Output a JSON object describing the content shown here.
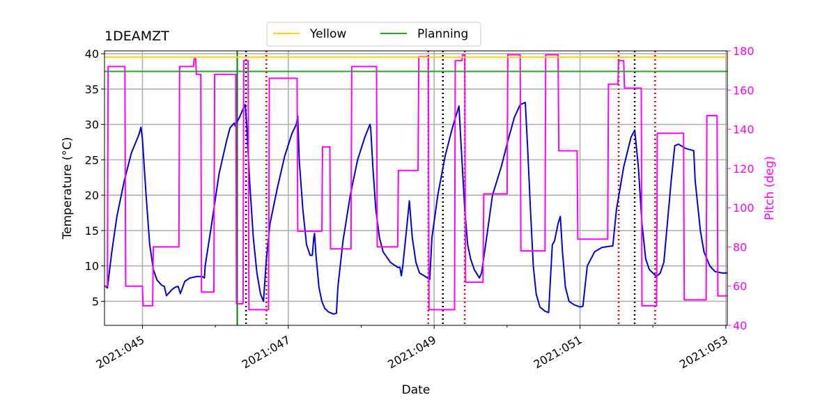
{
  "chart_data": {
    "type": "line",
    "title": "1DEAMZT",
    "xlabel": "Date",
    "ylabel": "Temperature ($^\\circ$C)",
    "y2label": "Pitch (deg)",
    "xlim": [
      44.48,
      53.02
    ],
    "ylim": [
      1.6,
      40.4
    ],
    "y2lim": [
      40,
      180
    ],
    "x_ticks": [
      45,
      47,
      49,
      51,
      53
    ],
    "x_tick_labels": [
      "2021:045",
      "2021:047",
      "2021:049",
      "2021:051",
      "2021:053"
    ],
    "y_ticks": [
      5,
      10,
      15,
      20,
      25,
      30,
      35,
      40
    ],
    "y2_ticks": [
      40,
      60,
      80,
      100,
      120,
      140,
      160,
      180
    ],
    "grid": true,
    "legend_position": "top-center",
    "colors": {
      "temperature": "#0000dd",
      "pitch": "#ff00ff",
      "yellow_limit": "#ffd700",
      "planning_limit": "#2ca02c",
      "now_line": "#008000",
      "black_marker": "#000000",
      "red_marker": "#dd0000"
    },
    "limit_lines": [
      {
        "name": "Yellow",
        "value": 39.5
      },
      {
        "name": "Planning",
        "value": 37.5
      }
    ],
    "now_x": 46.3,
    "black_markers": [
      46.42,
      49.12,
      51.75
    ],
    "red_markers": [
      46.7,
      48.92,
      49.42,
      51.53,
      52.03
    ],
    "series": [
      {
        "name": "",
        "axis": "temperature",
        "points": [
          [
            44.48,
            7.2
          ],
          [
            44.52,
            6.9
          ],
          [
            44.58,
            12
          ],
          [
            44.65,
            17
          ],
          [
            44.75,
            22
          ],
          [
            44.85,
            26
          ],
          [
            44.95,
            28.5
          ],
          [
            44.98,
            29.6
          ],
          [
            45.0,
            28
          ],
          [
            45.05,
            20
          ],
          [
            45.1,
            13
          ],
          [
            45.15,
            9.5
          ],
          [
            45.2,
            8
          ],
          [
            45.26,
            7.3
          ],
          [
            45.3,
            7.1
          ],
          [
            45.33,
            5.8
          ],
          [
            45.4,
            6.6
          ],
          [
            45.45,
            7
          ],
          [
            45.49,
            7.1
          ],
          [
            45.52,
            6.1
          ],
          [
            45.58,
            7.8
          ],
          [
            45.65,
            8.3
          ],
          [
            45.75,
            8.5
          ],
          [
            45.82,
            8.5
          ],
          [
            45.85,
            8.3
          ],
          [
            45.86,
            10
          ],
          [
            45.95,
            16
          ],
          [
            46.05,
            23
          ],
          [
            46.15,
            27.5
          ],
          [
            46.2,
            29.5
          ],
          [
            46.26,
            30.2
          ],
          [
            46.27,
            29.8
          ],
          [
            46.33,
            31
          ],
          [
            46.38,
            32.2
          ],
          [
            46.41,
            32.8
          ],
          [
            46.43,
            30
          ],
          [
            46.47,
            22
          ],
          [
            46.52,
            14
          ],
          [
            46.57,
            9
          ],
          [
            46.62,
            6
          ],
          [
            46.66,
            5
          ],
          [
            46.7,
            11
          ],
          [
            46.75,
            16
          ],
          [
            46.85,
            21
          ],
          [
            46.95,
            25.5
          ],
          [
            47.05,
            28.7
          ],
          [
            47.11,
            30
          ],
          [
            47.13,
            31.2
          ],
          [
            47.15,
            25
          ],
          [
            47.2,
            18
          ],
          [
            47.25,
            13
          ],
          [
            47.3,
            11.5
          ],
          [
            47.33,
            11.5
          ],
          [
            47.35,
            14
          ],
          [
            47.36,
            14.6
          ],
          [
            47.38,
            11.5
          ],
          [
            47.42,
            7
          ],
          [
            47.46,
            5
          ],
          [
            47.5,
            4
          ],
          [
            47.55,
            3.5
          ],
          [
            47.62,
            3.2
          ],
          [
            47.66,
            3.3
          ],
          [
            47.68,
            7
          ],
          [
            47.75,
            13.5
          ],
          [
            47.85,
            20
          ],
          [
            47.95,
            25
          ],
          [
            48.05,
            28.2
          ],
          [
            48.12,
            30
          ],
          [
            48.13,
            29.5
          ],
          [
            48.16,
            24
          ],
          [
            48.2,
            18
          ],
          [
            48.25,
            14
          ],
          [
            48.3,
            12
          ],
          [
            48.4,
            10.5
          ],
          [
            48.5,
            9.8
          ],
          [
            48.53,
            9.8
          ],
          [
            48.55,
            8.6
          ],
          [
            48.57,
            10
          ],
          [
            48.62,
            15
          ],
          [
            48.66,
            19.2
          ],
          [
            48.7,
            14
          ],
          [
            48.75,
            10.5
          ],
          [
            48.8,
            9
          ],
          [
            48.88,
            8.5
          ],
          [
            48.94,
            8.1
          ],
          [
            48.97,
            14
          ],
          [
            49.05,
            20
          ],
          [
            49.15,
            25.5
          ],
          [
            49.25,
            29.5
          ],
          [
            49.34,
            32.6
          ],
          [
            49.37,
            27
          ],
          [
            49.42,
            18
          ],
          [
            49.46,
            13
          ],
          [
            49.5,
            11
          ],
          [
            49.55,
            9.5
          ],
          [
            49.62,
            8.3
          ],
          [
            49.65,
            9
          ],
          [
            49.72,
            14
          ],
          [
            49.8,
            20
          ],
          [
            49.92,
            24
          ],
          [
            50.02,
            28
          ],
          [
            50.1,
            31
          ],
          [
            50.18,
            32.8
          ],
          [
            50.25,
            33.1
          ],
          [
            50.28,
            27
          ],
          [
            50.32,
            18
          ],
          [
            50.36,
            10
          ],
          [
            50.4,
            6
          ],
          [
            50.45,
            4.2
          ],
          [
            50.52,
            3.6
          ],
          [
            50.57,
            3.4
          ],
          [
            50.62,
            13
          ],
          [
            50.65,
            13.5
          ],
          [
            50.7,
            16
          ],
          [
            50.73,
            17
          ],
          [
            50.76,
            12
          ],
          [
            50.8,
            7
          ],
          [
            50.85,
            5
          ],
          [
            50.92,
            4.5
          ],
          [
            51.0,
            4.2
          ],
          [
            51.04,
            4.3
          ],
          [
            51.1,
            10
          ],
          [
            51.2,
            12
          ],
          [
            51.3,
            12.6
          ],
          [
            51.42,
            12.8
          ],
          [
            51.45,
            12.8
          ],
          [
            51.5,
            18
          ],
          [
            51.6,
            24
          ],
          [
            51.7,
            28.2
          ],
          [
            51.75,
            29.2
          ],
          [
            51.8,
            24
          ],
          [
            51.85,
            16
          ],
          [
            51.9,
            11
          ],
          [
            51.95,
            9.5
          ],
          [
            52.0,
            9
          ],
          [
            52.05,
            8.5
          ],
          [
            52.1,
            9
          ],
          [
            52.15,
            10.5
          ],
          [
            52.25,
            22
          ],
          [
            52.3,
            27
          ],
          [
            52.35,
            27.2
          ],
          [
            52.45,
            26.6
          ],
          [
            52.52,
            26.4
          ],
          [
            52.56,
            26.3
          ],
          [
            52.58,
            22
          ],
          [
            52.65,
            15
          ],
          [
            52.7,
            12
          ],
          [
            52.78,
            10
          ],
          [
            52.85,
            9.2
          ],
          [
            52.95,
            9
          ],
          [
            53.02,
            9
          ]
        ]
      },
      {
        "name": "",
        "axis": "pitch",
        "points": [
          [
            44.48,
            60
          ],
          [
            44.52,
            60
          ],
          [
            44.53,
            172
          ],
          [
            44.76,
            172
          ],
          [
            44.77,
            60
          ],
          [
            45.0,
            60
          ],
          [
            45.01,
            50
          ],
          [
            45.14,
            50
          ],
          [
            45.15,
            80
          ],
          [
            45.5,
            80
          ],
          [
            45.51,
            172
          ],
          [
            45.7,
            172
          ],
          [
            45.71,
            176
          ],
          [
            45.73,
            176
          ],
          [
            45.74,
            168
          ],
          [
            45.8,
            168
          ],
          [
            45.81,
            57
          ],
          [
            45.98,
            57
          ],
          [
            45.99,
            168
          ],
          [
            46.28,
            168
          ],
          [
            46.29,
            51
          ],
          [
            46.38,
            51
          ],
          [
            46.39,
            175
          ],
          [
            46.45,
            175
          ],
          [
            46.46,
            48
          ],
          [
            46.73,
            48
          ],
          [
            46.74,
            166
          ],
          [
            47.12,
            166
          ],
          [
            47.13,
            88
          ],
          [
            47.46,
            88
          ],
          [
            47.47,
            131
          ],
          [
            47.57,
            131
          ],
          [
            47.58,
            79
          ],
          [
            47.86,
            79
          ],
          [
            47.87,
            172
          ],
          [
            48.21,
            172
          ],
          [
            48.22,
            80
          ],
          [
            48.5,
            80
          ],
          [
            48.51,
            119
          ],
          [
            48.78,
            119
          ],
          [
            48.79,
            177
          ],
          [
            48.92,
            177
          ],
          [
            48.93,
            48
          ],
          [
            49.28,
            48
          ],
          [
            49.29,
            175
          ],
          [
            49.38,
            175
          ],
          [
            49.39,
            178
          ],
          [
            49.42,
            178
          ],
          [
            49.43,
            62
          ],
          [
            49.67,
            62
          ],
          [
            49.68,
            107
          ],
          [
            50.0,
            107
          ],
          [
            50.01,
            178
          ],
          [
            50.18,
            178
          ],
          [
            50.19,
            78
          ],
          [
            50.52,
            78
          ],
          [
            50.53,
            178
          ],
          [
            50.7,
            178
          ],
          [
            50.71,
            129
          ],
          [
            50.96,
            129
          ],
          [
            50.97,
            84
          ],
          [
            51.38,
            84
          ],
          [
            51.39,
            163
          ],
          [
            51.52,
            163
          ],
          [
            51.53,
            175
          ],
          [
            51.6,
            175
          ],
          [
            51.61,
            161
          ],
          [
            51.84,
            161
          ],
          [
            51.85,
            50
          ],
          [
            52.05,
            50
          ],
          [
            52.06,
            138
          ],
          [
            52.42,
            138
          ],
          [
            52.43,
            53
          ],
          [
            52.73,
            53
          ],
          [
            52.74,
            147
          ],
          [
            52.88,
            147
          ],
          [
            52.89,
            55
          ],
          [
            52.98,
            55
          ],
          [
            53.02,
            55
          ]
        ]
      }
    ]
  }
}
